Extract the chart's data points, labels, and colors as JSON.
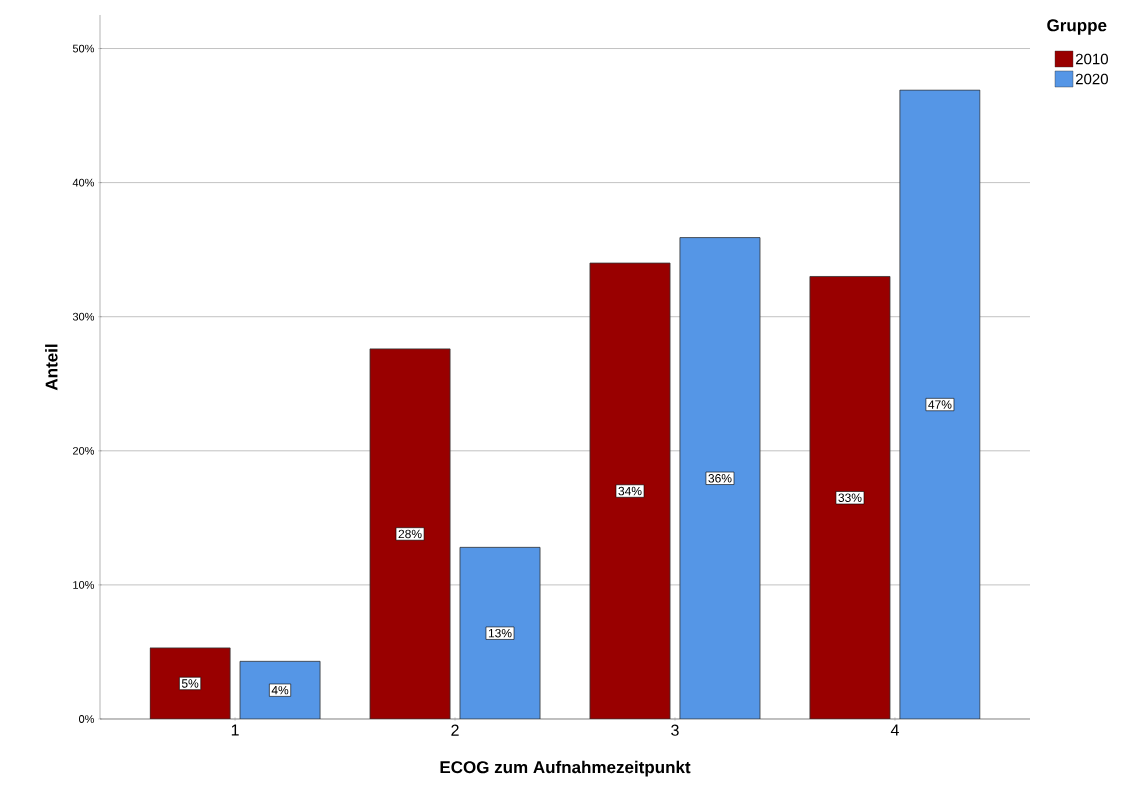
{
  "chart_data": {
    "type": "bar",
    "xlabel": "ECOG zum Aufnahmezeitpunkt",
    "ylabel": "Anteil",
    "legend_title": "Gruppe",
    "categories": [
      "1",
      "2",
      "3",
      "4"
    ],
    "series": [
      {
        "name": "2010",
        "color": "#990000",
        "values": [
          5.3,
          27.6,
          34.0,
          33.0
        ],
        "value_labels": [
          "5%",
          "28%",
          "34%",
          "33%"
        ]
      },
      {
        "name": "2020",
        "color": "#5596e6",
        "values": [
          4.3,
          12.8,
          35.9,
          46.9
        ],
        "value_labels": [
          "4%",
          "13%",
          "36%",
          "47%"
        ]
      }
    ],
    "ylim": [
      0,
      52.5
    ],
    "yticks": [
      {
        "value": 0,
        "label": "0%"
      },
      {
        "value": 10,
        "label": "10%"
      },
      {
        "value": 20,
        "label": "20%"
      },
      {
        "value": 30,
        "label": "30%"
      },
      {
        "value": 40,
        "label": "40%"
      },
      {
        "value": 50,
        "label": "50%"
      }
    ],
    "grid": "y",
    "legend": "top right"
  }
}
